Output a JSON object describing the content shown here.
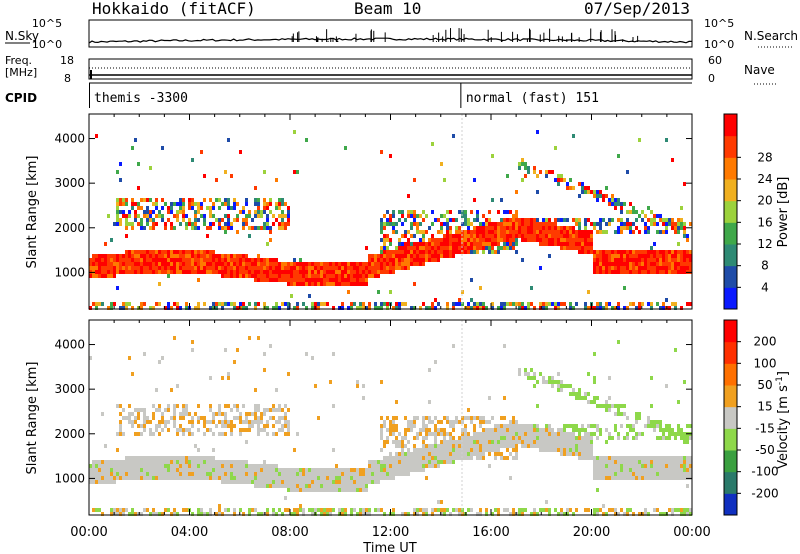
{
  "header": {
    "station": "Hokkaido (fitACF)",
    "beam": "Beam 10",
    "date": "07/Sep/2013"
  },
  "chart_data": [
    {
      "type": "line",
      "panel": "noise",
      "left_label": "N.Sky",
      "right_label": "N.Search",
      "left_ticks": [
        "10^5",
        "10^0"
      ],
      "right_ticks": [
        "10^5",
        "10^0"
      ],
      "x_range_hours": [
        0,
        24
      ]
    },
    {
      "type": "line",
      "panel": "frequency-nave",
      "left_label_lines": [
        "Freq.",
        "[MHz]"
      ],
      "right_label": "Nave",
      "left_ticks": [
        "18",
        "8"
      ],
      "right_ticks": [
        "60",
        "0"
      ],
      "x_range_hours": [
        0,
        24
      ]
    },
    {
      "type": "table",
      "panel": "cpid",
      "label": "CPID",
      "segments": [
        {
          "start_hour": 0.0,
          "label": "themis -3300"
        },
        {
          "start_hour": 14.8,
          "label": "normal (fast) 151"
        }
      ]
    },
    {
      "type": "heatmap",
      "panel": "power",
      "ylabel": "Slant Range [km]",
      "yticks": [
        1000,
        2000,
        3000,
        4000
      ],
      "ylim": [
        180,
        4550
      ],
      "xlim_hours": [
        0,
        24
      ],
      "colorbar": {
        "label": "Power [dB]",
        "ticks": [
          "4",
          "8",
          "12",
          "16",
          "20",
          "24",
          "28"
        ],
        "colors": [
          "#0a1aff",
          "#1f4ca8",
          "#2e8a74",
          "#3fa84a",
          "#9cd23c",
          "#f0b020",
          "#ff7a00",
          "#ff3a00",
          "#ff0000"
        ]
      }
    },
    {
      "type": "heatmap",
      "panel": "velocity",
      "ylabel": "Slant Range [km]",
      "yticks": [
        1000,
        2000,
        3000,
        4000
      ],
      "ylim": [
        180,
        4550
      ],
      "xlim_hours": [
        0,
        24
      ],
      "xticks": [
        "00:00",
        "04:00",
        "08:00",
        "12:00",
        "16:00",
        "20:00",
        "00:00"
      ],
      "xlabel": "Time UT",
      "colorbar": {
        "label": "Velocity [m s-1]",
        "ticks": [
          "200",
          "100",
          "50",
          "15",
          "-15",
          "-50",
          "-100",
          "-200"
        ],
        "colors": [
          "#1030c0",
          "#2a7a6a",
          "#3aa040",
          "#8ed84a",
          "#c8c8c4",
          "#f0a020",
          "#ff7000",
          "#ff3000",
          "#ff0000"
        ]
      }
    }
  ]
}
